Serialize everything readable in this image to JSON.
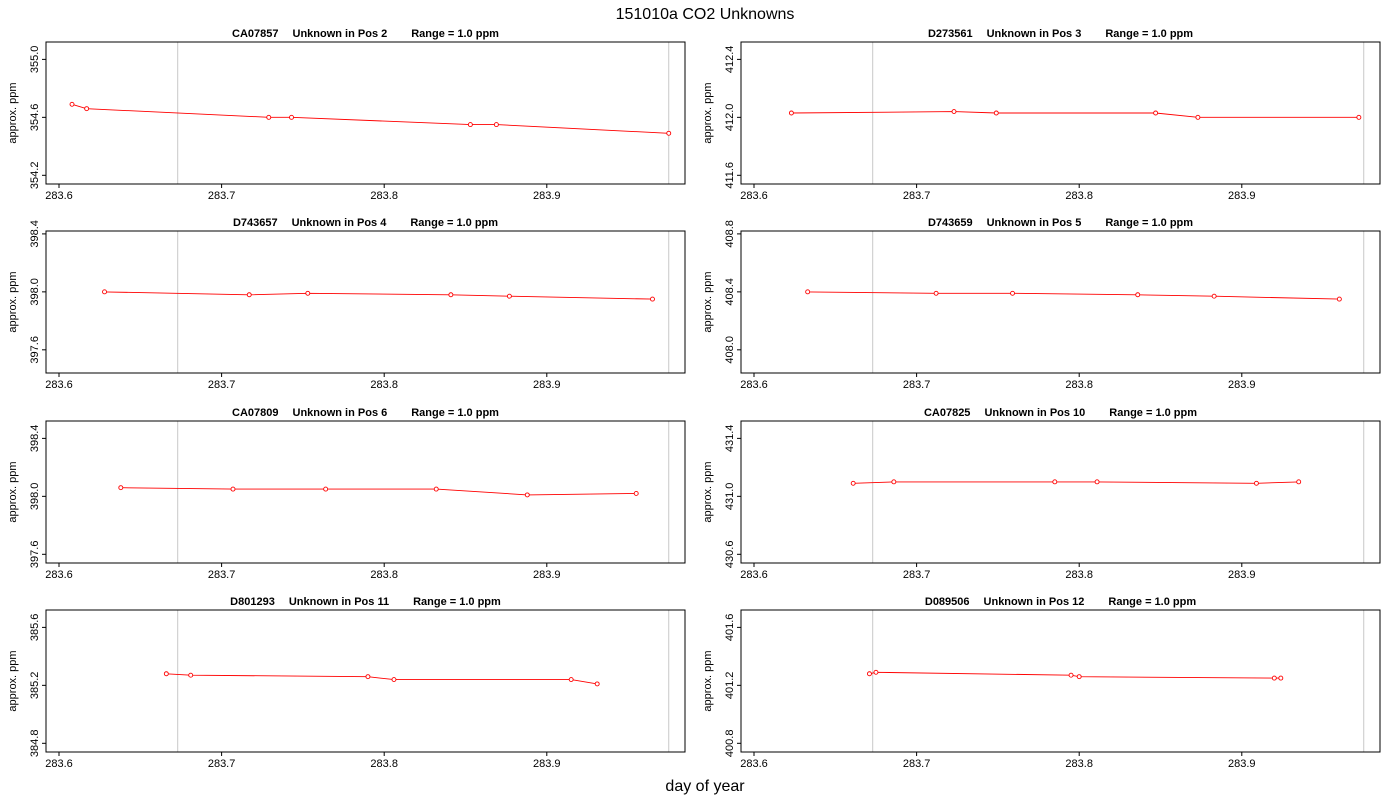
{
  "title": "151010a  CO2 Unknowns",
  "xlabel": "day of year",
  "colors": {
    "series": "#ff0000",
    "vline": "#c8c8c8"
  },
  "chart_data": [
    {
      "type": "line",
      "title_id": "CA07857",
      "title_pos": "Unknown in Pos 2",
      "title_range": "Range = 1.0 ppm",
      "ylabel": "approx. ppm",
      "xlim": [
        283.592,
        283.985
      ],
      "ylim": [
        354.14,
        355.12
      ],
      "xticks": [
        283.6,
        283.7,
        283.8,
        283.9
      ],
      "xticklabels": [
        "283.6",
        "283.7",
        "283.8",
        "283.9"
      ],
      "yticks": [
        354.2,
        354.6,
        355.0
      ],
      "yticklabels": [
        "354.2",
        "354.6",
        "355.0"
      ],
      "vlines": [
        283.673,
        283.975
      ],
      "x": [
        283.608,
        283.617,
        283.729,
        283.743,
        283.853,
        283.869,
        283.975
      ],
      "y": [
        354.69,
        354.66,
        354.6,
        354.6,
        354.55,
        354.55,
        354.49
      ]
    },
    {
      "type": "line",
      "title_id": "D273561",
      "title_pos": "Unknown in Pos 3",
      "title_range": "Range = 1.0 ppm",
      "ylabel": "approx. ppm",
      "xlim": [
        283.592,
        283.985
      ],
      "ylim": [
        411.54,
        412.52
      ],
      "xticks": [
        283.6,
        283.7,
        283.8,
        283.9
      ],
      "xticklabels": [
        "283.6",
        "283.7",
        "283.8",
        "283.9"
      ],
      "yticks": [
        411.6,
        412.0,
        412.4
      ],
      "yticklabels": [
        "411.6",
        "412.0",
        "412.4"
      ],
      "vlines": [
        283.673,
        283.975
      ],
      "x": [
        283.623,
        283.723,
        283.749,
        283.847,
        283.873,
        283.972
      ],
      "y": [
        412.03,
        412.04,
        412.03,
        412.03,
        412.0,
        412.0
      ]
    },
    {
      "type": "line",
      "title_id": "D743657",
      "title_pos": "Unknown in Pos 4",
      "title_range": "Range = 1.0 ppm",
      "ylabel": "approx. ppm",
      "xlim": [
        283.592,
        283.985
      ],
      "ylim": [
        397.44,
        398.42
      ],
      "xticks": [
        283.6,
        283.7,
        283.8,
        283.9
      ],
      "xticklabels": [
        "283.6",
        "283.7",
        "283.8",
        "283.9"
      ],
      "yticks": [
        397.6,
        398.0,
        398.4
      ],
      "yticklabels": [
        "397.6",
        "398.0",
        "398.4"
      ],
      "vlines": [
        283.673,
        283.975
      ],
      "x": [
        283.628,
        283.717,
        283.753,
        283.841,
        283.877,
        283.965
      ],
      "y": [
        398.0,
        397.98,
        397.99,
        397.98,
        397.97,
        397.95
      ]
    },
    {
      "type": "line",
      "title_id": "D743659",
      "title_pos": "Unknown in Pos 5",
      "title_range": "Range = 1.0 ppm",
      "ylabel": "approx. ppm",
      "xlim": [
        283.592,
        283.985
      ],
      "ylim": [
        407.84,
        408.82
      ],
      "xticks": [
        283.6,
        283.7,
        283.8,
        283.9
      ],
      "xticklabels": [
        "283.6",
        "283.7",
        "283.8",
        "283.9"
      ],
      "yticks": [
        408.0,
        408.4,
        408.8
      ],
      "yticklabels": [
        "408.0",
        "408.4",
        "408.8"
      ],
      "vlines": [
        283.673,
        283.975
      ],
      "x": [
        283.633,
        283.712,
        283.759,
        283.836,
        283.883,
        283.96
      ],
      "y": [
        408.4,
        408.39,
        408.39,
        408.38,
        408.37,
        408.35
      ]
    },
    {
      "type": "line",
      "title_id": "CA07809",
      "title_pos": "Unknown in Pos 6",
      "title_range": "Range = 1.0 ppm",
      "ylabel": "approx. ppm",
      "xlim": [
        283.592,
        283.985
      ],
      "ylim": [
        397.54,
        398.52
      ],
      "xticks": [
        283.6,
        283.7,
        283.8,
        283.9
      ],
      "xticklabels": [
        "283.6",
        "283.7",
        "283.8",
        "283.9"
      ],
      "yticks": [
        397.6,
        398.0,
        398.4
      ],
      "yticklabels": [
        "397.6",
        "398.0",
        "398.4"
      ],
      "vlines": [
        283.673,
        283.975
      ],
      "x": [
        283.638,
        283.707,
        283.764,
        283.832,
        283.888,
        283.955
      ],
      "y": [
        398.06,
        398.05,
        398.05,
        398.05,
        398.01,
        398.02
      ]
    },
    {
      "type": "line",
      "title_id": "CA07825",
      "title_pos": "Unknown in Pos 10",
      "title_range": "Range = 1.0 ppm",
      "ylabel": "approx. ppm",
      "xlim": [
        283.592,
        283.985
      ],
      "ylim": [
        430.54,
        431.52
      ],
      "xticks": [
        283.6,
        283.7,
        283.8,
        283.9
      ],
      "xticklabels": [
        "283.6",
        "283.7",
        "283.8",
        "283.9"
      ],
      "yticks": [
        430.6,
        431.0,
        431.4
      ],
      "yticklabels": [
        "430.6",
        "431.0",
        "431.4"
      ],
      "vlines": [
        283.673,
        283.975
      ],
      "x": [
        283.661,
        283.686,
        283.785,
        283.811,
        283.909,
        283.935
      ],
      "y": [
        431.09,
        431.1,
        431.1,
        431.1,
        431.09,
        431.1
      ]
    },
    {
      "type": "line",
      "title_id": "D801293",
      "title_pos": "Unknown in Pos 11",
      "title_range": "Range = 1.0 ppm",
      "ylabel": "approx. ppm",
      "xlim": [
        283.592,
        283.985
      ],
      "ylim": [
        384.74,
        385.72
      ],
      "xticks": [
        283.6,
        283.7,
        283.8,
        283.9
      ],
      "xticklabels": [
        "283.6",
        "283.7",
        "283.8",
        "283.9"
      ],
      "yticks": [
        384.8,
        385.2,
        385.6
      ],
      "yticklabels": [
        "384.8",
        "385.2",
        "385.6"
      ],
      "vlines": [
        283.673,
        283.975
      ],
      "x": [
        283.666,
        283.681,
        283.79,
        283.806,
        283.915,
        283.931
      ],
      "y": [
        385.28,
        385.27,
        385.26,
        385.24,
        385.24,
        385.21
      ]
    },
    {
      "type": "line",
      "title_id": "D089506",
      "title_pos": "Unknown in Pos 12",
      "title_range": "Range = 1.0 ppm",
      "ylabel": "approx. ppm",
      "xlim": [
        283.592,
        283.985
      ],
      "ylim": [
        400.74,
        401.72
      ],
      "xticks": [
        283.6,
        283.7,
        283.8,
        283.9
      ],
      "xticklabels": [
        "283.6",
        "283.7",
        "283.8",
        "283.9"
      ],
      "yticks": [
        400.8,
        401.2,
        401.6
      ],
      "yticklabels": [
        "400.8",
        "401.2",
        "401.6"
      ],
      "vlines": [
        283.673,
        283.975
      ],
      "x": [
        283.671,
        283.675,
        283.795,
        283.8,
        283.92,
        283.924
      ],
      "y": [
        401.28,
        401.29,
        401.27,
        401.26,
        401.25,
        401.25
      ]
    }
  ]
}
